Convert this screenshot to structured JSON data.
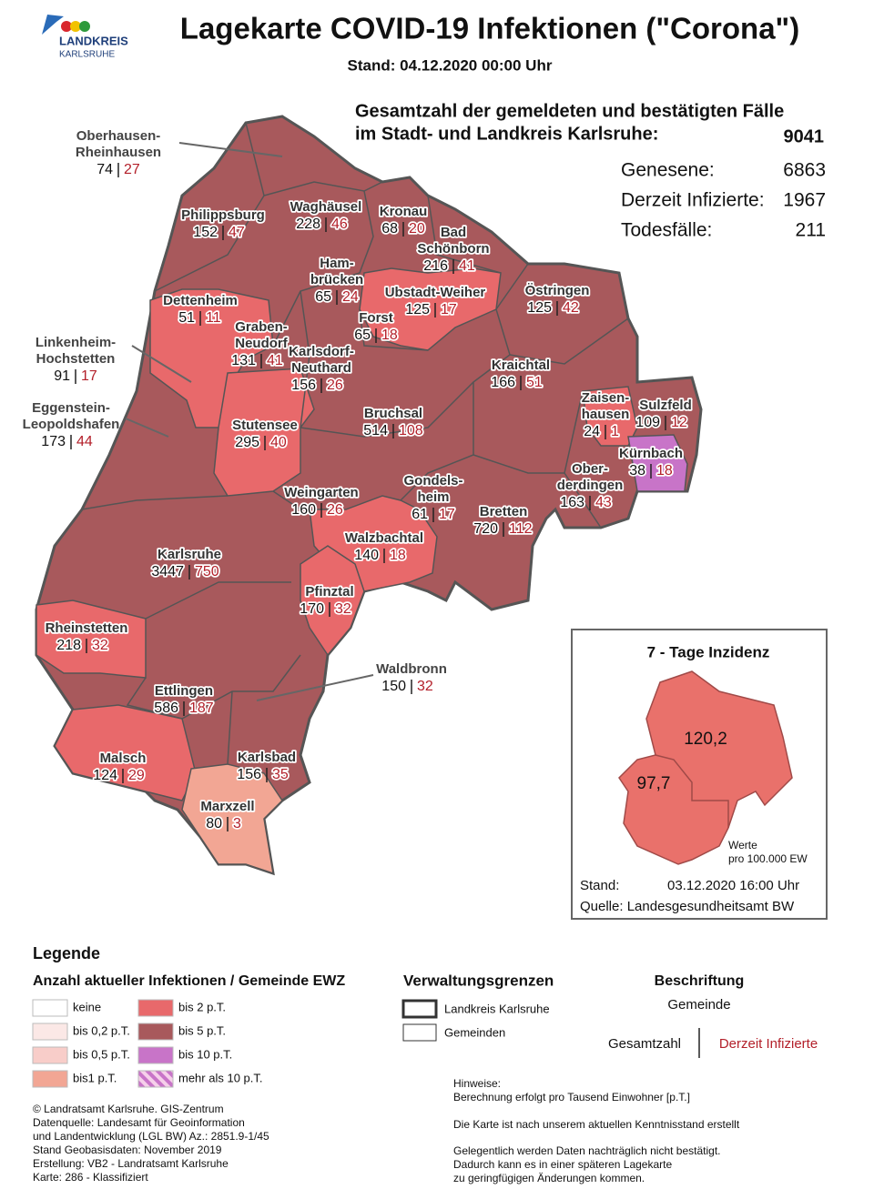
{
  "header": {
    "logo": [
      "LANDKREIS",
      "KARLSRUHE"
    ],
    "title": "Lagekarte COVID-19 Infektionen (\"Corona\")",
    "stand": "Stand: 04.12.2020 00:00 Uhr"
  },
  "summary": {
    "heading": [
      "Gesamtzahl der gemeldeten und bestätigten Fälle",
      "im Stadt- und Landkreis Karlsruhe:"
    ],
    "total": 9041,
    "rows": [
      {
        "label": "Genesene:",
        "value": 6863
      },
      {
        "label": "Derzeit Infizierte:",
        "value": 1967
      },
      {
        "label": "Todesfälle:",
        "value": 211
      }
    ]
  },
  "municipalities": [
    {
      "name": [
        "Oberhausen-",
        "Rheinhausen"
      ],
      "total": 74,
      "active": 27
    },
    {
      "name": [
        "Philippsburg"
      ],
      "total": 152,
      "active": 47
    },
    {
      "name": [
        "Waghäusel"
      ],
      "total": 228,
      "active": 46
    },
    {
      "name": [
        "Kronau"
      ],
      "total": 68,
      "active": 20
    },
    {
      "name": [
        "Bad",
        "Schönborn"
      ],
      "total": 216,
      "active": 41
    },
    {
      "name": [
        "Ham-",
        "brücken"
      ],
      "total": 65,
      "active": 24
    },
    {
      "name": [
        "Ubstadt-Weiher"
      ],
      "total": 125,
      "active": 17
    },
    {
      "name": [
        "Östringen"
      ],
      "total": 125,
      "active": 42
    },
    {
      "name": [
        "Dettenheim"
      ],
      "total": 51,
      "active": 11
    },
    {
      "name": [
        "Graben-",
        "Neudorf"
      ],
      "total": 131,
      "active": 41
    },
    {
      "name": [
        "Forst"
      ],
      "total": 65,
      "active": 18
    },
    {
      "name": [
        "Karlsdorf-",
        "Neuthard"
      ],
      "total": 156,
      "active": 26
    },
    {
      "name": [
        "Linkenheim-",
        "Hochstetten"
      ],
      "total": 91,
      "active": 17
    },
    {
      "name": [
        "Kraichtal"
      ],
      "total": 166,
      "active": 51
    },
    {
      "name": [
        "Zaisen-",
        "hausen"
      ],
      "total": 24,
      "active": 1
    },
    {
      "name": [
        "Sulzfeld"
      ],
      "total": 109,
      "active": 12
    },
    {
      "name": [
        "Eggenstein-",
        "Leopoldshafen"
      ],
      "total": 173,
      "active": 44
    },
    {
      "name": [
        "Bruchsal"
      ],
      "total": 514,
      "active": 108
    },
    {
      "name": [
        "Stutensee"
      ],
      "total": 295,
      "active": 40
    },
    {
      "name": [
        "Kürnbach"
      ],
      "total": 38,
      "active": 18
    },
    {
      "name": [
        "Ober-",
        "derdingen"
      ],
      "total": 163,
      "active": 43
    },
    {
      "name": [
        "Gondels-",
        "heim"
      ],
      "total": 61,
      "active": 17
    },
    {
      "name": [
        "Weingarten"
      ],
      "total": 160,
      "active": 26
    },
    {
      "name": [
        "Bretten"
      ],
      "total": 720,
      "active": 112
    },
    {
      "name": [
        "Walzbachtal"
      ],
      "total": 140,
      "active": 18
    },
    {
      "name": [
        "Karlsruhe"
      ],
      "total": 3447,
      "active": 750
    },
    {
      "name": [
        "Pfinztal"
      ],
      "total": 170,
      "active": 32
    },
    {
      "name": [
        "Rheinstetten"
      ],
      "total": 218,
      "active": 32
    },
    {
      "name": [
        "Waldbronn"
      ],
      "total": 150,
      "active": 32
    },
    {
      "name": [
        "Ettlingen"
      ],
      "total": 586,
      "active": 187
    },
    {
      "name": [
        "Malsch"
      ],
      "total": 124,
      "active": 29
    },
    {
      "name": [
        "Karlsbad"
      ],
      "total": 156,
      "active": 35
    },
    {
      "name": [
        "Marxzell"
      ],
      "total": 80,
      "active": 3
    }
  ],
  "inset": {
    "title": "7 - Tage Inzidenz",
    "values": [
      "120,2",
      "97,7"
    ],
    "note": [
      "Werte",
      "pro 100.000 EW"
    ],
    "stand_label": "Stand:",
    "stand": "03.12.2020 16:00 Uhr",
    "source": "Quelle: Landesgesundheitsamt BW"
  },
  "legend": {
    "title": "Legende",
    "subtitle": "Anzahl aktueller Infektionen / Gemeinde EWZ",
    "classes": [
      {
        "label": "keine",
        "color": "#ffffff"
      },
      {
        "label": "bis 0,2 p.T.",
        "color": "#fbe8e6"
      },
      {
        "label": "bis 0,5 p.T.",
        "color": "#f8cdc9"
      },
      {
        "label": "bis1 p.T.",
        "color": "#f2a694"
      },
      {
        "label": "bis 2  p.T.",
        "color": "#e8696b"
      },
      {
        "label": "bis 5 p.T.",
        "color": "#a8595c"
      },
      {
        "label": "bis 10 p.T.",
        "color": "#c874c8"
      },
      {
        "label": "mehr als 10 p.T.",
        "color": "#c874c8",
        "pattern": "stripes"
      }
    ],
    "borders_title": "Verwaltungsgrenzen",
    "borders": [
      "Landkreis Karlsruhe",
      "Gemeinden"
    ],
    "labels_title": "Beschriftung",
    "labels": {
      "name": "Gemeinde",
      "total": "Gesamtzahl",
      "active": "Derzeit Infizierte"
    }
  },
  "notes": [
    "Hinweise:",
    "Berechnung erfolgt pro Tausend Einwohner  [p.T.]",
    "Die Karte ist nach unserem aktuellen Kenntnisstand erstellt",
    "Gelegentlich werden Daten nachträglich nicht bestätigt.",
    "Dadurch kann es in einer späteren Lagekarte",
    "zu geringfügigen Änderungen kommen."
  ],
  "credits": [
    "© Landratsamt Karlsruhe. GIS-Zentrum",
    "Datenquelle: Landesamt für Geoinformation",
    "und Landentwicklung (LGL BW) Az.: 2851.9-1/45",
    "Stand Geobasisdaten: November 2019",
    "Erstellung: VB2 - Landratsamt Karlsruhe",
    "Karte: 286 - Klassifiziert"
  ]
}
